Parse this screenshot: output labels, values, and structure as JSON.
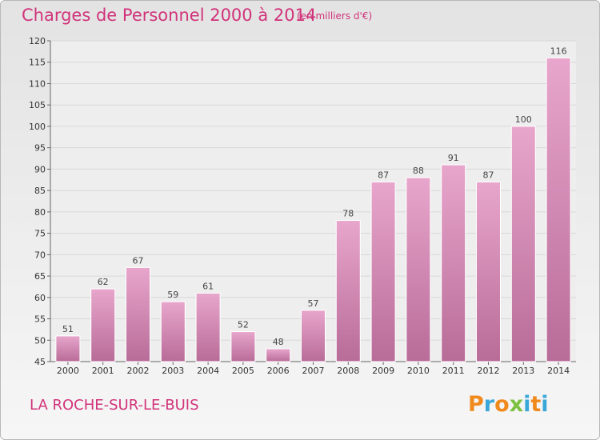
{
  "header": {
    "title": "Charges de Personnel 2000 à 2014",
    "subtitle": "(en milliers d'€)"
  },
  "footer": {
    "commune": "LA ROCHE-SUR-LE-BUIS",
    "brand": "Proxiti",
    "brand_colors": [
      "#f08a1c",
      "#3aa7d8",
      "#f08a1c",
      "#7cc142",
      "#3aa7d8",
      "#f08a1c",
      "#3aa7d8"
    ]
  },
  "colors": {
    "title": "#d1337a",
    "bar_top": "#e8a6cc",
    "bar_bottom": "#b86c98",
    "grid": "#d8d8d8"
  },
  "chart_data": {
    "type": "bar",
    "title": "Charges de Personnel 2000 à 2014",
    "subtitle": "(en milliers d'€)",
    "xlabel": "",
    "ylabel": "",
    "categories": [
      "2000",
      "2001",
      "2002",
      "2003",
      "2004",
      "2005",
      "2006",
      "2007",
      "2008",
      "2009",
      "2010",
      "2011",
      "2012",
      "2013",
      "2014"
    ],
    "values": [
      51,
      62,
      67,
      59,
      61,
      52,
      48,
      57,
      78,
      87,
      88,
      91,
      87,
      100,
      116
    ],
    "ylim": [
      45,
      120
    ],
    "yticks": [
      45,
      50,
      55,
      60,
      65,
      70,
      75,
      80,
      85,
      90,
      95,
      100,
      105,
      110,
      115,
      120
    ],
    "grid": true,
    "data_labels": true
  }
}
